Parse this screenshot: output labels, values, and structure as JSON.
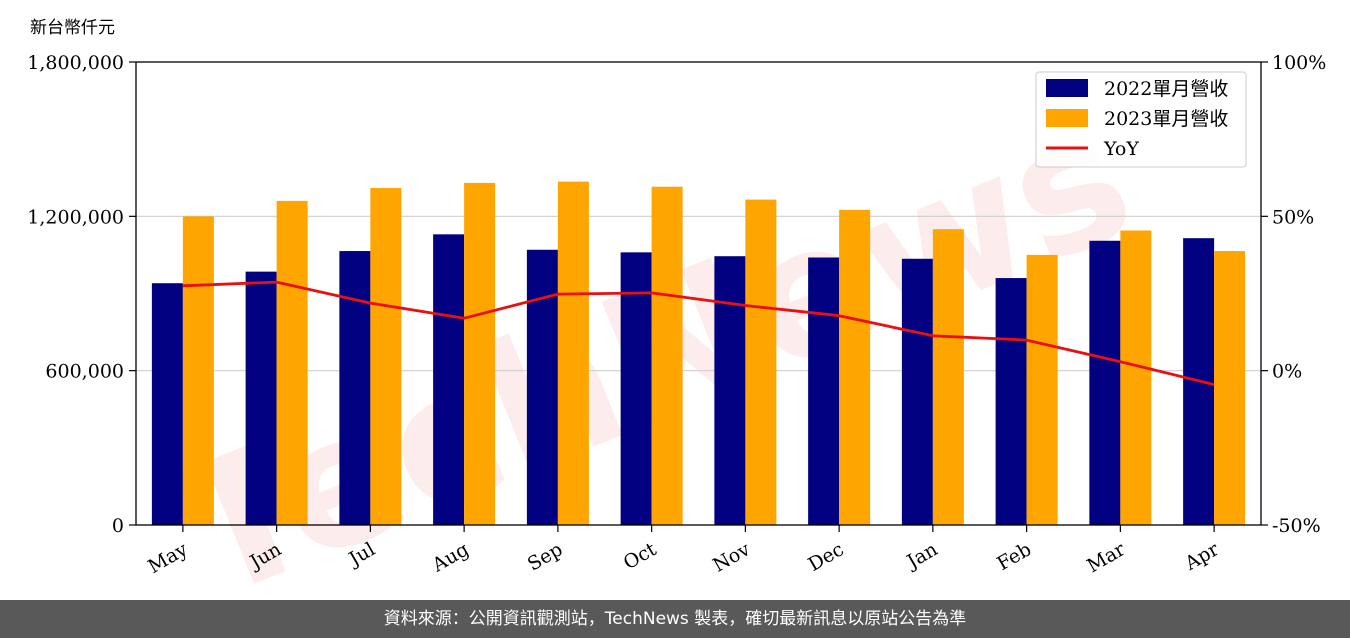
{
  "unit_label": "新台幣仟元",
  "footer_text": "資料來源：公開資訊觀測站，TechNews 製表，確切最新訊息以原站公告為準",
  "watermark": "TechNews",
  "colors": {
    "bar_2022": "#000080",
    "bar_2023": "#FFA500",
    "yoy_line": "#E81010",
    "footer_bg": "#595959"
  },
  "chart_data": {
    "type": "bar",
    "categories": [
      "May",
      "Jun",
      "Jul",
      "Aug",
      "Sep",
      "Oct",
      "Nov",
      "Dec",
      "Jan",
      "Feb",
      "Mar",
      "Apr"
    ],
    "series": [
      {
        "name": "2022單月營收",
        "type": "bar",
        "axis": "left",
        "values": [
          940000,
          985000,
          1065000,
          1130000,
          1070000,
          1060000,
          1045000,
          1040000,
          1035000,
          960000,
          1105000,
          1115000
        ]
      },
      {
        "name": "2023單月營收",
        "type": "bar",
        "axis": "left",
        "values": [
          1200000,
          1260000,
          1310000,
          1330000,
          1335000,
          1315000,
          1265000,
          1225000,
          1150000,
          1050000,
          1145000,
          1065000
        ]
      },
      {
        "name": "YoY",
        "type": "line",
        "axis": "right",
        "values": [
          27.5,
          28.7,
          21.9,
          17.0,
          24.8,
          25.2,
          21.1,
          17.8,
          11.3,
          9.9,
          2.9,
          -4.5
        ]
      }
    ],
    "y_left": {
      "ticks": [
        "0",
        "600,000",
        "1,200,000",
        "1,800,000"
      ],
      "min": 0,
      "max": 1800000
    },
    "y_right": {
      "ticks": [
        "-50%",
        "0%",
        "50%",
        "100%"
      ],
      "min": -50,
      "max": 100
    },
    "grid": "horizontal",
    "legend_position": "top-right"
  }
}
